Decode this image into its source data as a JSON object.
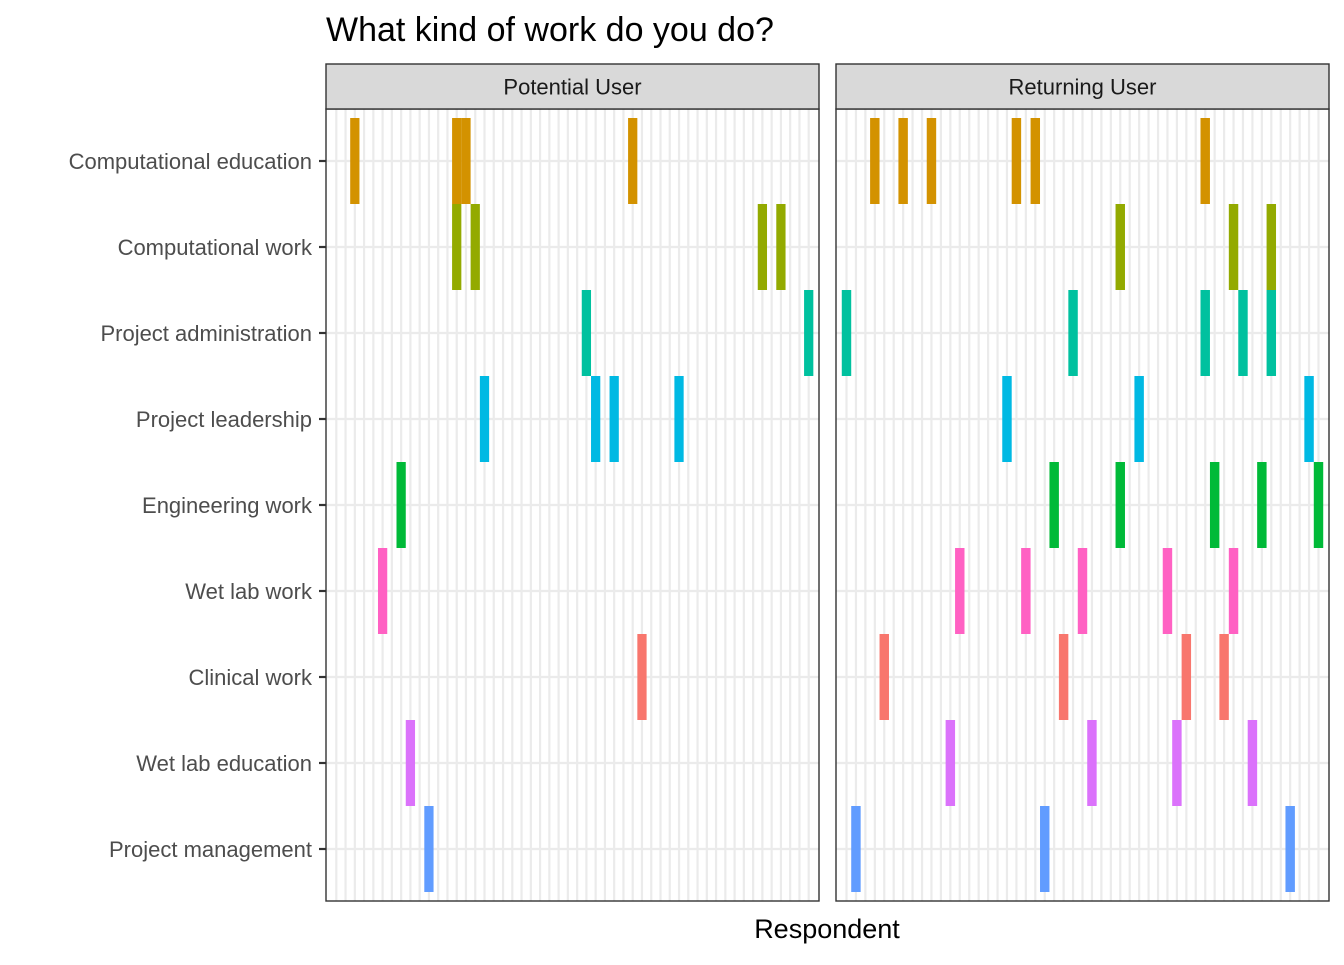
{
  "chart_data": {
    "type": "heatmap",
    "title": "What kind of work do you do?",
    "xlabel": "Respondent",
    "ylabel": "",
    "grid": true,
    "legend": "none",
    "categories": [
      "Computational education",
      "Computational work",
      "Project administration",
      "Project leadership",
      "Engineering work",
      "Wet lab work",
      "Clinical work",
      "Wet lab education",
      "Project management"
    ],
    "category_colors": {
      "Computational education": "#D39200",
      "Computational work": "#93AA00",
      "Project administration": "#00C19F",
      "Project leadership": "#00B9E3",
      "Engineering work": "#00BA38",
      "Wet lab work": "#FF61C3",
      "Clinical work": "#F8766D",
      "Wet lab education": "#DB72FB",
      "Project management": "#619CFF"
    },
    "panels": [
      {
        "label": "Potential User",
        "respondent_count": 52,
        "responses": {
          "Computational education": [
            2,
            13,
            14,
            32
          ],
          "Computational work": [
            13,
            15,
            46,
            48
          ],
          "Project administration": [
            27,
            51
          ],
          "Project leadership": [
            16,
            28,
            30,
            37
          ],
          "Engineering work": [
            7
          ],
          "Wet lab work": [
            5
          ],
          "Clinical work": [
            33
          ],
          "Wet lab education": [
            8
          ],
          "Project management": [
            10
          ]
        }
      },
      {
        "label": "Returning User",
        "respondent_count": 51,
        "responses": {
          "Computational education": [
            3,
            6,
            9,
            18,
            20,
            38
          ],
          "Computational work": [
            29,
            41,
            45
          ],
          "Project administration": [
            0,
            24,
            38,
            42,
            45
          ],
          "Project leadership": [
            17,
            31,
            49
          ],
          "Engineering work": [
            22,
            29,
            39,
            44,
            50
          ],
          "Wet lab work": [
            12,
            19,
            25,
            34,
            41
          ],
          "Clinical work": [
            4,
            23,
            36,
            40
          ],
          "Wet lab education": [
            11,
            26,
            35,
            43
          ],
          "Project management": [
            1,
            21,
            47
          ]
        }
      }
    ]
  }
}
